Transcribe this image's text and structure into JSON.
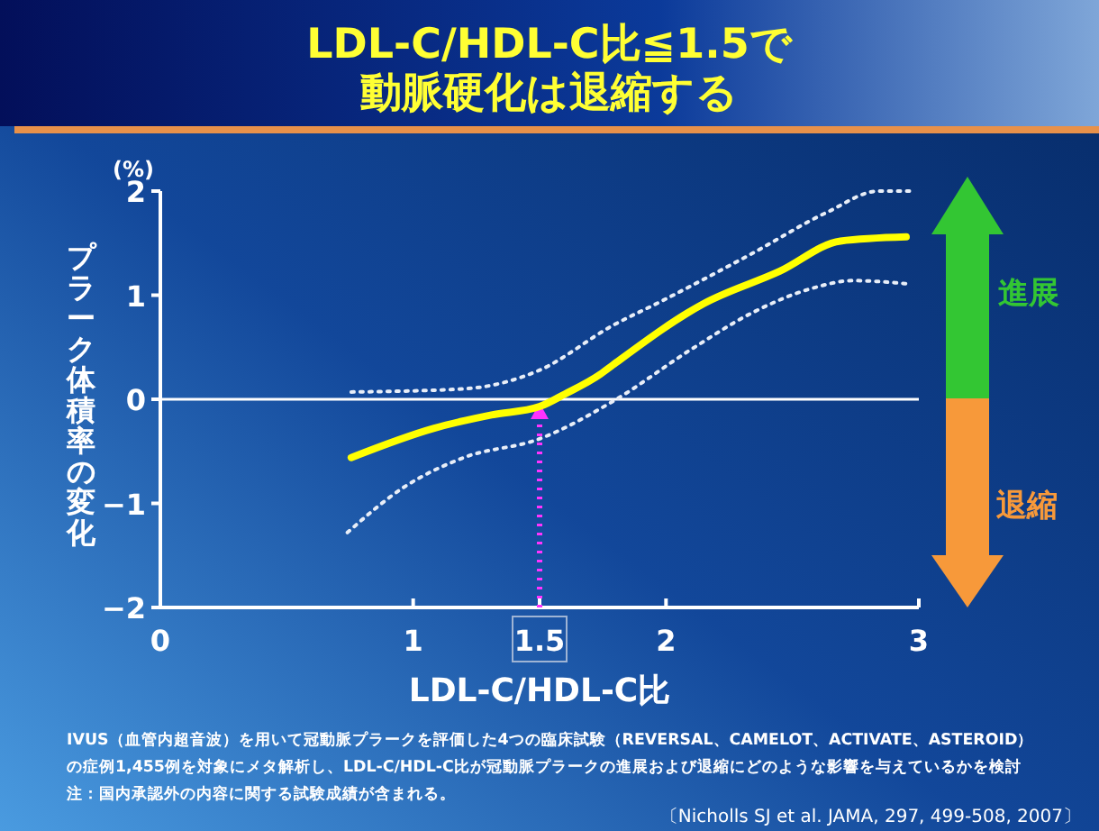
{
  "chart_data": {
    "type": "line",
    "title": "LDL-C/HDL-C比≦1.5で動脈硬化は退縮する",
    "xlabel": "LDL-C/HDL-C比",
    "ylabel": "プラーク体積率の変化",
    "xlim": [
      0,
      3
    ],
    "ylim": [
      -2,
      2
    ],
    "xticks": [
      0,
      1,
      1.5,
      2,
      3
    ],
    "yticks": [
      2,
      1,
      0,
      {
        "value": -1,
        "label": "−1"
      },
      {
        "value": -2,
        "label": "−2"
      }
    ],
    "grid": false,
    "marker": "none",
    "series": [
      {
        "color": "#ffff00",
        "line_style": "solid",
        "x": [
          0.755,
          1.08,
          1.31,
          1.5,
          1.6,
          1.74,
          1.79,
          2.15,
          2.45,
          2.69,
          2.95
        ],
        "values": [
          -0.56,
          -0.28,
          -0.15,
          -0.07,
          0.05,
          0.24,
          0.33,
          0.92,
          1.23,
          1.52,
          1.56
        ]
      },
      {
        "color": "#e8eef8",
        "line_style": "dotted",
        "x": [
          0.755,
          1.2,
          1.5,
          1.79,
          1.98,
          2.34,
          2.64,
          2.84,
          2.97
        ],
        "values": [
          0.07,
          0.1,
          0.28,
          0.71,
          0.94,
          1.4,
          1.8,
          2.0,
          2.0
        ]
      },
      {
        "color": "#e8eef8",
        "line_style": "dotted",
        "x": [
          0.74,
          0.96,
          1.2,
          1.5,
          1.79,
          2.1,
          2.34,
          2.57,
          2.74,
          2.95
        ],
        "values": [
          -1.28,
          -0.85,
          -0.56,
          -0.38,
          -0.02,
          0.48,
          0.83,
          1.06,
          1.14,
          1.11
        ]
      }
    ],
    "ref_lines": [
      {
        "axis": "y",
        "value": 0,
        "color": "#ffffff",
        "line_style": "solid"
      },
      {
        "axis": "x",
        "value": 1.5,
        "color": "#ff33ff",
        "line_style": "dotted"
      }
    ],
    "annotations": [
      "(%)",
      "進展",
      "退縮",
      "IVUS（血管内超音波）を用いて冠動脈プラークを評価した4つの臨床試験（REVERSAL、CAMELOT、ACTIVATE、ASTEROID）",
      "の症例1,455例を対象にメタ解析し、LDL-C/HDL-C比が冠動脈プラークの進展および退縮にどのような影響を与えているかを検討",
      "注：国内承認外の内容に関する試験成績が含まれる。",
      "〔Nicholls SJ et al. JAMA, 297, 499-508, 2007〕"
    ]
  }
}
